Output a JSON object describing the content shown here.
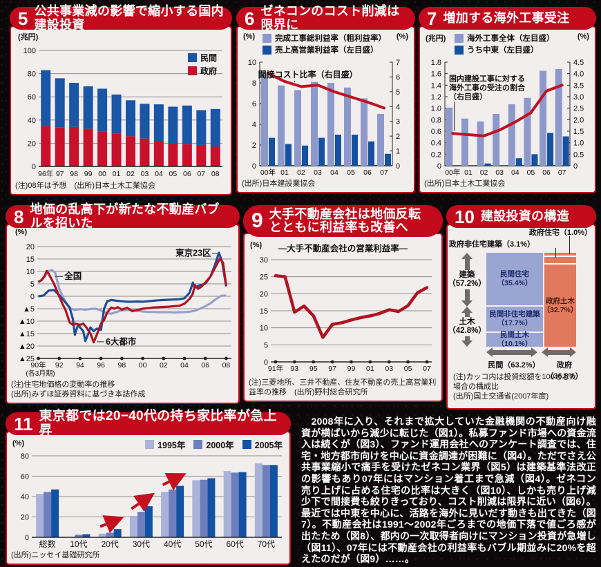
{
  "palette": {
    "header_red": "#c30a1d",
    "panel_bg": "#f2eeee",
    "page_bg": "#0b0809",
    "text_white": "#ffffff"
  },
  "chart_data": [
    {
      "fig": "5",
      "type": "bar",
      "stacked": true,
      "title": "公共事業減の影響で縮小する国内建設投資",
      "unit_left": "(兆円)",
      "categories": [
        "96年",
        "97",
        "98",
        "99",
        "00",
        "01",
        "02",
        "03",
        "04",
        "05",
        "06",
        "07",
        "08"
      ],
      "series": [
        {
          "name": "政府",
          "color": "#c8112b",
          "values": [
            35,
            33.5,
            34,
            32.5,
            30,
            28.5,
            26,
            24,
            22,
            20,
            19,
            18.5,
            17
          ]
        },
        {
          "name": "民間",
          "color": "#1a55a6",
          "values": [
            48,
            42.5,
            38,
            36.5,
            37,
            33.5,
            31,
            30,
            31.5,
            31.5,
            33.5,
            30,
            32.5
          ]
        }
      ],
      "ylim": [
        0,
        100
      ],
      "yticks": [
        0,
        20,
        40,
        60,
        80,
        100
      ],
      "note": "(注)08年は予想　(出所)日本土木工業協会"
    },
    {
      "fig": "6",
      "type": "bar-line",
      "title": "ゼネコンのコスト削減は限界に",
      "unit_left": "(%)",
      "unit_right": "(%)",
      "categories": [
        "00年",
        "01",
        "02",
        "03",
        "04",
        "05",
        "06",
        "07"
      ],
      "bars": [
        {
          "name": "完成工事総利益率（粗利益率）",
          "color": "#8d99cb",
          "values": [
            8.9,
            7.75,
            7.3,
            8.1,
            8.0,
            7.55,
            6.5,
            5.0
          ]
        },
        {
          "name": "売上高営業利益率（左目盛）",
          "color": "#15519f",
          "values": [
            2.7,
            2.1,
            1.95,
            2.7,
            3.0,
            3.0,
            2.35,
            1.15
          ]
        }
      ],
      "line": {
        "name": "間接コスト比率（右目盛）",
        "color": "#bf1222",
        "values": [
          6.25,
          5.7,
          5.35,
          5.45,
          5.0,
          4.65,
          4.3,
          3.9
        ]
      },
      "ylim": [
        0,
        10
      ],
      "yticks": [
        "0",
        "2",
        "4",
        "6",
        "8",
        "10"
      ],
      "y2lim": [
        0,
        7
      ],
      "y2ticks": [
        "0",
        "1",
        "2",
        "3",
        "4",
        "5",
        "6",
        "7"
      ],
      "note": "(出所)日本建設業協会"
    },
    {
      "fig": "7",
      "type": "bar-line",
      "title": "増加する海外工事受注",
      "unit_left": "(兆円)",
      "unit_right": "(%)",
      "categories": [
        "00年",
        "01",
        "02",
        "03",
        "04",
        "05",
        "06",
        "07"
      ],
      "bars": [
        {
          "name": "海外工事全体（左目盛）",
          "color": "#8d99cb",
          "values": [
            1.01,
            0.82,
            0.77,
            0.9,
            1.07,
            1.18,
            1.65,
            1.68
          ]
        },
        {
          "name": "うち中東（左目盛）",
          "color": "#15519f",
          "values": [
            0,
            0,
            0.04,
            0.01,
            0.13,
            0.2,
            0.57,
            0.51
          ]
        }
      ],
      "line": {
        "name": "国内建設工事に対する海外工事の受注の割合（右目盛）",
        "color": "#bf1222",
        "values": [
          1.4,
          1.35,
          1.3,
          1.55,
          1.9,
          2.3,
          3.25,
          3.5
        ]
      },
      "annotation_lines": [
        "国内建設工事に対する",
        "海外工事の受注の割合",
        "（右目盛）"
      ],
      "ylim": [
        0,
        1.8
      ],
      "yticks": [
        "0",
        "0.2",
        "0.4",
        "0.6",
        "0.8",
        "1.0",
        "1.2",
        "1.4",
        "1.6",
        "1.8"
      ],
      "y2lim": [
        0,
        4.5
      ],
      "y2ticks": [
        "0",
        "0.5",
        "1.0",
        "1.5",
        "2.0",
        "2.5",
        "3.0",
        "3.5",
        "4.0",
        "4.5"
      ],
      "note": "(出所)日本土木工業協会"
    },
    {
      "fig": "8",
      "type": "line",
      "title": "地価の乱高下が新たな不動産バブルを招いた",
      "unit_left": "(%)",
      "ylim": [
        -25,
        20
      ],
      "yticks": [
        20,
        15,
        10,
        5,
        0,
        -5,
        -10,
        -15,
        -20,
        -25
      ],
      "ylabels": [
        "20",
        "15",
        "10",
        "5",
        "0",
        "▲5",
        "▲10",
        "▲15",
        "▲20",
        "▲25"
      ],
      "xticks": [
        1990,
        1992,
        1994,
        1996,
        1998,
        2000,
        2002,
        2004,
        2006,
        2008
      ],
      "xlabels": [
        "90年",
        "92",
        "94",
        "96",
        "98",
        "00",
        "02",
        "04",
        "06",
        "08"
      ],
      "xnote": "(各3月期)",
      "series": [
        {
          "name": "全国",
          "color": "#95a1cd",
          "points": [
            [
              1990,
              5.5
            ],
            [
              1990.5,
              7.3
            ],
            [
              1991,
              10.2
            ],
            [
              1991.3,
              10.5
            ],
            [
              1991.6,
              9.6
            ],
            [
              1992,
              3
            ],
            [
              1992.5,
              -1.5
            ],
            [
              1993,
              -4.8
            ],
            [
              1993.5,
              -5.5
            ],
            [
              1994,
              -5.2
            ],
            [
              1994.5,
              -5.4
            ],
            [
              1995,
              -5.1
            ],
            [
              1995.5,
              -5
            ],
            [
              1996,
              -5.7
            ],
            [
              1996.5,
              -6.8
            ],
            [
              1997,
              -7
            ],
            [
              1997.5,
              -6.3
            ],
            [
              1998,
              -5.7
            ],
            [
              1998.5,
              -5.5
            ],
            [
              1999,
              -5.6
            ],
            [
              1999.5,
              -5.9
            ],
            [
              2000,
              -6.1
            ],
            [
              2000.5,
              -6.3
            ],
            [
              2001,
              -6.3
            ],
            [
              2001.5,
              -6.4
            ],
            [
              2002,
              -6.4
            ],
            [
              2002.5,
              -6.4
            ],
            [
              2003,
              -6.5
            ],
            [
              2003.5,
              -6.4
            ],
            [
              2004,
              -6.4
            ],
            [
              2004.5,
              -6.2
            ],
            [
              2005,
              -5.8
            ],
            [
              2005.5,
              -5
            ],
            [
              2006,
              -4
            ],
            [
              2006.5,
              -2.8
            ],
            [
              2007,
              -1.2
            ],
            [
              2007.5,
              0.2
            ],
            [
              2008,
              0.3
            ]
          ]
        },
        {
          "name": "東京23区",
          "color": "#1e4e95",
          "points": [
            [
              1990,
              0
            ],
            [
              1990.5,
              0.3
            ],
            [
              1991,
              2.3
            ],
            [
              1991.5,
              2.5
            ],
            [
              1992,
              0.5
            ],
            [
              1992.5,
              -2
            ],
            [
              1993,
              -4.5
            ],
            [
              1993.3,
              -9
            ],
            [
              1993.5,
              -15.5
            ],
            [
              1993.8,
              -11.5
            ],
            [
              1994,
              -12.5
            ],
            [
              1994.3,
              -14
            ],
            [
              1994.5,
              -18
            ],
            [
              1994.8,
              -15
            ],
            [
              1995,
              -12.5
            ],
            [
              1995.3,
              -14
            ],
            [
              1995.6,
              -13
            ],
            [
              1996,
              -13.5
            ],
            [
              1996.3,
              -5
            ],
            [
              1996.6,
              -2
            ],
            [
              1997,
              -1.5
            ],
            [
              1997.5,
              -1.8
            ],
            [
              1998,
              -2
            ],
            [
              1998.5,
              -2.2
            ],
            [
              1999,
              -2.2
            ],
            [
              1999.5,
              -2.1
            ],
            [
              2000,
              -2.2
            ],
            [
              2000.5,
              -2
            ],
            [
              2001,
              -1.8
            ],
            [
              2001.5,
              -1.6
            ],
            [
              2002,
              -1.5
            ],
            [
              2002.5,
              -1.4
            ],
            [
              2003,
              -1.3
            ],
            [
              2003.5,
              -1.2
            ],
            [
              2004,
              -0.8
            ],
            [
              2004.5,
              1.5
            ],
            [
              2004.8,
              5.5
            ],
            [
              2005,
              3.5
            ],
            [
              2005.5,
              4.5
            ],
            [
              2006,
              5
            ],
            [
              2006.5,
              8
            ],
            [
              2007,
              13.5
            ],
            [
              2007.3,
              17.5
            ],
            [
              2007.6,
              14
            ],
            [
              2008,
              4
            ]
          ]
        },
        {
          "name": "6大都市",
          "color": "#b2121f",
          "points": [
            [
              1990,
              5.8
            ],
            [
              1990.3,
              6.5
            ],
            [
              1990.6,
              8.2
            ],
            [
              1990.8,
              10.2
            ],
            [
              1991,
              9
            ],
            [
              1991.5,
              5
            ],
            [
              1992,
              0
            ],
            [
              1992.3,
              -3
            ],
            [
              1992.6,
              -5.5
            ],
            [
              1993,
              -10.5
            ],
            [
              1993.3,
              -11.5
            ],
            [
              1993.6,
              -11
            ],
            [
              1994,
              -11.5
            ],
            [
              1994.3,
              -11
            ],
            [
              1994.6,
              -12.5
            ],
            [
              1995,
              -15
            ],
            [
              1995.3,
              -18.5
            ],
            [
              1995.6,
              -15.5
            ],
            [
              1996,
              -11
            ],
            [
              1996.3,
              -9.5
            ],
            [
              1996.6,
              -6.5
            ],
            [
              1997,
              -4.5
            ],
            [
              1997.3,
              -5
            ],
            [
              1997.6,
              -4.4
            ],
            [
              1998,
              -5.4
            ],
            [
              1998.5,
              -4.6
            ],
            [
              1999,
              -6
            ],
            [
              1999.5,
              -5.5
            ],
            [
              2000,
              -5
            ],
            [
              2000.5,
              -4.8
            ],
            [
              2001,
              -4.5
            ],
            [
              2001.5,
              -4.4
            ],
            [
              2002,
              -4.3
            ],
            [
              2002.5,
              -4.2
            ],
            [
              2003,
              -4
            ],
            [
              2003.5,
              -3.8
            ],
            [
              2004,
              -3
            ],
            [
              2004.5,
              -1
            ],
            [
              2004.8,
              1
            ],
            [
              2005,
              4.5
            ],
            [
              2005.3,
              3
            ],
            [
              2005.6,
              3.8
            ],
            [
              2006,
              5.5
            ],
            [
              2006.5,
              8
            ],
            [
              2007,
              12
            ],
            [
              2007.4,
              15.2
            ],
            [
              2007.7,
              13.5
            ],
            [
              2008,
              4.3
            ]
          ]
        }
      ],
      "note": "(注)住宅地価格の変動率の推移\n(出所)みずほ証券資料に基づき本誌作成"
    },
    {
      "fig": "9",
      "type": "line",
      "title": "大手不動産会社は地価反転\nとともに利益率も改善へ",
      "subtitle": "―大手不動産会社の営業利益率―",
      "unit_left": "(%)",
      "color": "#b2121f",
      "x": [
        1991,
        1992,
        1993,
        1994,
        1995,
        1996,
        1997,
        1998,
        1999,
        2000,
        2001,
        2002,
        2003,
        2004,
        2005,
        2006,
        2007
      ],
      "values": [
        25.3,
        25,
        14.6,
        16.4,
        13.5,
        7.2,
        11,
        11.5,
        12.3,
        13,
        13.5,
        14.2,
        15.3,
        14.8,
        16.5,
        20.3,
        21.8
      ],
      "ylim": [
        0,
        30
      ],
      "yticks": [
        0,
        5,
        10,
        15,
        20,
        25,
        30
      ],
      "xticks": [
        1991,
        1993,
        1995,
        1997,
        1999,
        2001,
        2003,
        2005,
        2007
      ],
      "xlabels": [
        "91年",
        "93",
        "95",
        "97",
        "99",
        "01",
        "03",
        "05",
        "07"
      ],
      "note": "(注)三菱地所、三井不動産、住友不動産の売上高営業利益率の推移　(出所)野村総合研究所"
    },
    {
      "fig": "10",
      "type": "mosaic",
      "title": "建設投資の構造",
      "columns": [
        {
          "name": "民間",
          "pct": 63.2,
          "axis_label": "民間（63.2%）",
          "color": "#9aa5d2",
          "text_color": "#1c2d6e",
          "blocks": [
            {
              "name": "民間住宅",
              "pct": 35.4,
              "label": "民間住宅\n（35.4%）"
            },
            {
              "name": "民間非住宅建築",
              "pct": 17.7,
              "label": "民間非住宅建築\n（17.7%）"
            },
            {
              "name": "民間土木",
              "pct": 10.1,
              "label": "民間土木（10.1%）"
            }
          ]
        },
        {
          "name": "政府",
          "pct": 36.8,
          "axis_label": "政府（36.8%）",
          "color": "#e17a5d",
          "text_color": "#47190e",
          "blocks": [
            {
              "name": "政府住宅",
              "pct": 1.0,
              "label": ""
            },
            {
              "name": "政府非住宅建築",
              "pct": 3.1,
              "label": ""
            },
            {
              "name": "政府土木",
              "pct": 32.7,
              "label": "政府土木\n（32.7%）"
            }
          ]
        }
      ],
      "callouts": [
        "政府住宅（1.0%）",
        "政府非住宅建築（3.1%）"
      ],
      "rows": [
        {
          "label": "建築\n（57.2%）",
          "pct": 57.2
        },
        {
          "label": "土木\n（42.8%）",
          "pct": 42.8
        }
      ],
      "note": "(注)カッコ内は投資総額を100とした場合の構成比\n(出所)国土交通省(2007年度)"
    },
    {
      "fig": "11",
      "type": "bar",
      "grouped": true,
      "title": "東京都では20−40代の持ち家比率が急上昇",
      "unit_left": "(%)",
      "categories": [
        "総数",
        "10代",
        "20代",
        "30代",
        "40代",
        "50代",
        "60代",
        "70代"
      ],
      "series": [
        {
          "name": "1995年",
          "color": "#a9b2d8",
          "values": [
            42.5,
            0.5,
            3.5,
            21,
            44.5,
            56,
            65,
            72.5
          ]
        },
        {
          "name": "2000年",
          "color": "#6e7fbd",
          "values": [
            44.5,
            2.5,
            4.5,
            25,
            47,
            56.5,
            63.5,
            71
          ]
        },
        {
          "name": "2005年",
          "color": "#1252a4",
          "values": [
            47,
            3,
            8,
            30.5,
            50.5,
            58,
            64,
            71
          ]
        }
      ],
      "ylim": [
        0,
        80
      ],
      "yticks": [
        0,
        20,
        40,
        60,
        80
      ],
      "arrow_categories": [
        "20代",
        "30代",
        "40代"
      ],
      "arrow_color": "#c3111f",
      "note": "(出所)ニッセイ基礎研究所"
    }
  ],
  "paragraph": "　2008年に入り、それまで拡大していた金融機関の不動産向け融資が横ばいから減少に転じた（図1）。私募ファンド市場への資金流入は続くが（図3）、ファンド運用会社へのアンケート調査では、住宅・地方都市向けを中心に資金調達が困難に（図4）。ただでさえ公共事業縮小で痛手を受けたゼネコン業界（図5）は建築基準法改正の影響もあり07年にはマンション着工まで急減（図4）。ゼネコン売り上げに占める住宅の比率は大きく（図10）、しかも売り上げ減少下で間接費も絞りきっており、コスト削減は限界に近い（図6）。最近では中東を中心に、活路を海外に見いだす動きも出てきた（図7）。不動産会社は1991～2002年ごろまでの地価下落で値ごろ感が出たため（図8）、都内の一次取得者向けにマンション投資が急増し（図11）、07年には不動産会社の利益率もバブル期並みに20%を超えたのだが（図9）……。"
}
